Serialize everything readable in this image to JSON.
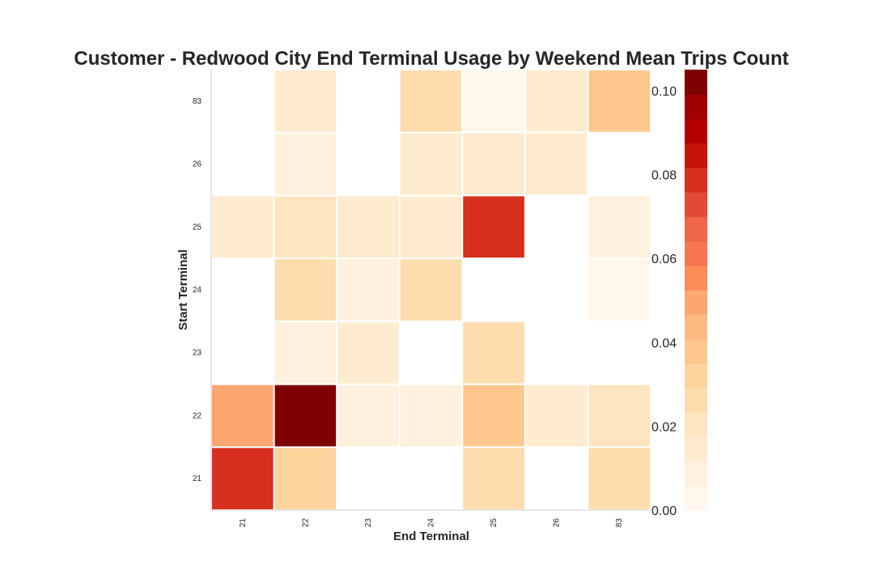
{
  "chart_data": {
    "type": "heatmap",
    "title": "Customer - Redwood City End Terminal Usage by Weekend Mean Trips Count",
    "xlabel": "End Terminal",
    "ylabel": "Start Terminal",
    "x_categories": [
      "21",
      "22",
      "23",
      "24",
      "25",
      "26",
      "83"
    ],
    "y_categories": [
      "21",
      "22",
      "23",
      "24",
      "25",
      "26",
      "83"
    ],
    "values": [
      [
        0.081,
        0.034,
        null,
        null,
        0.026,
        null,
        0.025
      ],
      [
        0.049,
        0.105,
        0.011,
        0.007,
        0.036,
        0.016,
        0.018
      ],
      [
        null,
        0.008,
        0.013,
        null,
        0.024,
        null,
        null
      ],
      [
        null,
        0.025,
        0.008,
        0.027,
        null,
        null,
        0.005
      ],
      [
        0.017,
        0.022,
        0.012,
        0.017,
        0.081,
        null,
        0.01
      ],
      [
        null,
        0.006,
        null,
        0.012,
        0.013,
        0.015,
        null
      ],
      [
        null,
        0.014,
        null,
        0.029,
        0.005,
        0.014,
        0.037
      ]
    ],
    "colormap": "OrRd",
    "color_levels": [
      "#fff7ec",
      "#fff1de",
      "#ffebcf",
      "#fee4c0",
      "#fddcae",
      "#fdd49e",
      "#fdc78e",
      "#fdbb84",
      "#fca670",
      "#fc8d59",
      "#f67652",
      "#ef6548",
      "#e14a35",
      "#d7301f",
      "#c71408",
      "#b30000",
      "#a00000",
      "#7f0000"
    ],
    "vmin": 0.0,
    "vmax": 0.105,
    "colorbar_ticks": [
      "0.00",
      "0.02",
      "0.04",
      "0.06",
      "0.08",
      "0.10"
    ],
    "grid": false
  }
}
